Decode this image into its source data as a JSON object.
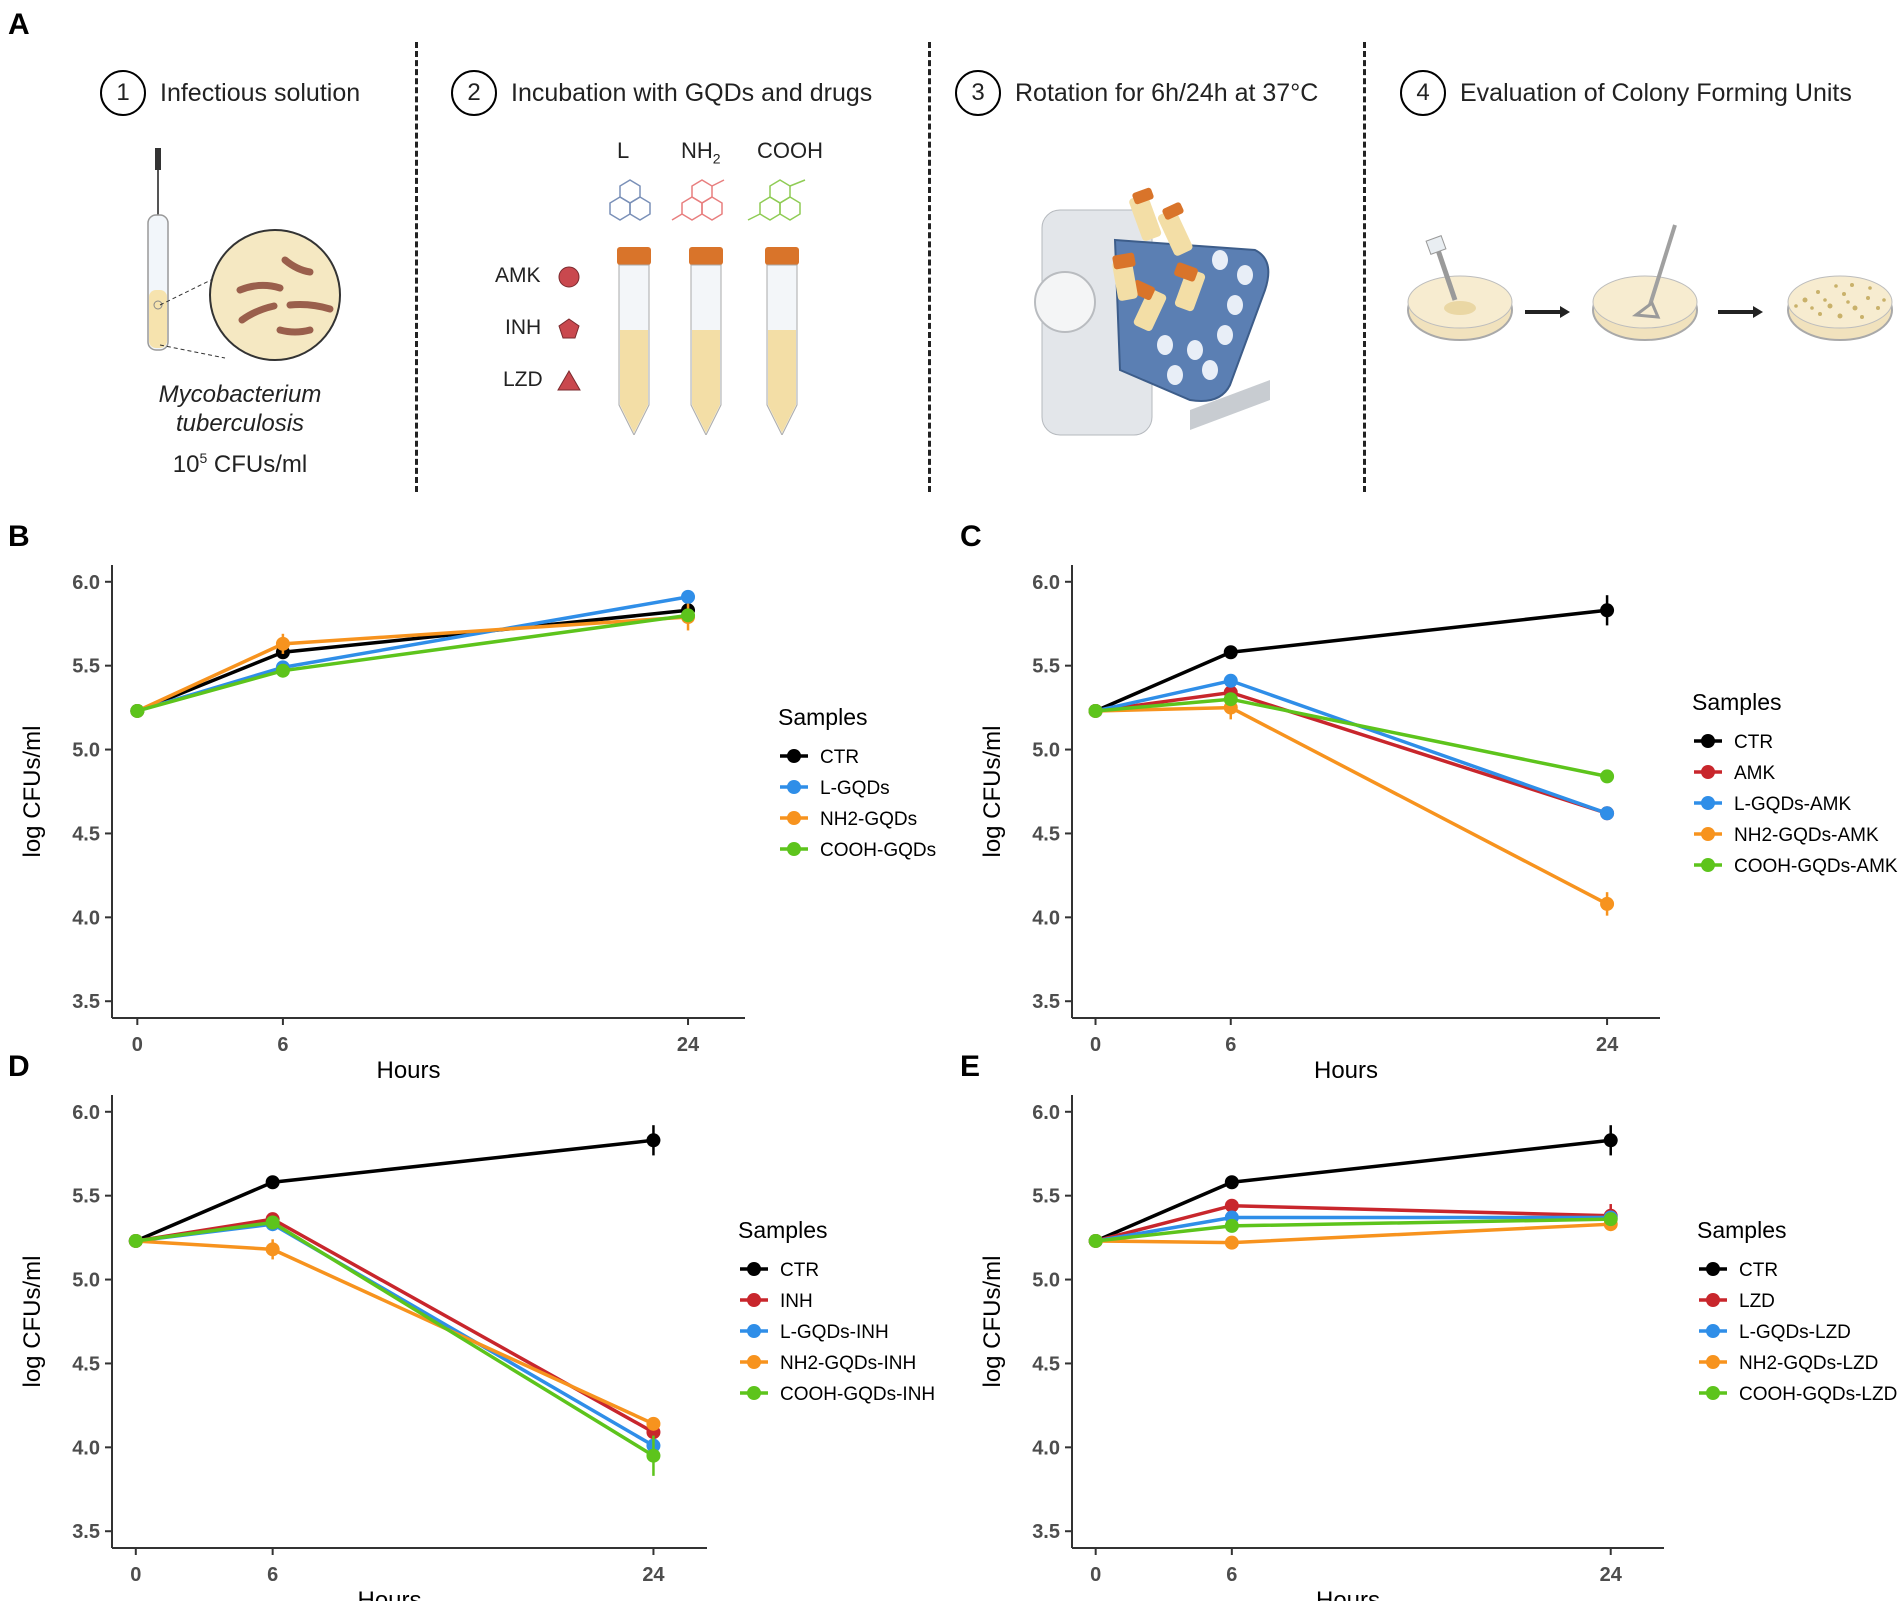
{
  "panel_A": {
    "label": "A",
    "steps": [
      {
        "num": "1",
        "text": "Infectious solution"
      },
      {
        "num": "2",
        "text": "Incubation with GQDs and drugs"
      },
      {
        "num": "3",
        "text": "Rotation for 6h/24h at 37°C"
      },
      {
        "num": "4",
        "text": "Evaluation of Colony Forming Units"
      }
    ],
    "organism_line1": "Mycobacterium",
    "organism_line2": "tuberculosis",
    "conc_base": "10",
    "conc_exp": "5",
    "conc_unit": "CFUs/ml",
    "gqd_types": [
      "L",
      "NH",
      "COOH"
    ],
    "nh2_sub": "2",
    "drugs": [
      "AMK",
      "INH",
      "LZD"
    ],
    "colors": {
      "tube_cap": "#d9742a",
      "plate": "#f4e7c4",
      "rotator_blue": "#5b7fb3",
      "l_gqd": "#7a90b8",
      "nh2_gqd": "#e87f7f",
      "cooh_gqd": "#8fcc55",
      "drug_shape": "#c9484e"
    }
  },
  "chart_data": [
    {
      "panel": "B",
      "type": "line",
      "x": [
        0,
        6,
        24
      ],
      "xlabel": "Hours",
      "ylabel": "log CFUs/ml",
      "ylim": [
        3.4,
        6.1
      ],
      "yticks": [
        "3.5",
        "4.0",
        "4.5",
        "5.0",
        "5.5",
        "6.0"
      ],
      "xticks": [
        "0",
        "6",
        "24"
      ],
      "legend_title": "Samples",
      "series": [
        {
          "name": "CTR",
          "color": "#000000",
          "values": [
            5.23,
            5.58,
            5.83
          ],
          "err": [
            0,
            0.03,
            0.04
          ]
        },
        {
          "name": "L-GQDs",
          "color": "#2f8ee8",
          "values": [
            5.23,
            5.49,
            5.91
          ],
          "err": [
            0,
            0.02,
            0.02
          ]
        },
        {
          "name": "NH2-GQDs",
          "color": "#f7931e",
          "values": [
            5.23,
            5.63,
            5.79
          ],
          "err": [
            0,
            0.06,
            0.08
          ]
        },
        {
          "name": "COOH-GQDs",
          "color": "#5dc41c",
          "values": [
            5.23,
            5.47,
            5.8
          ],
          "err": [
            0,
            0.02,
            0.03
          ]
        }
      ]
    },
    {
      "panel": "C",
      "type": "line",
      "x": [
        0,
        6,
        24
      ],
      "xlabel": "Hours",
      "ylabel": "log CFUs/ml",
      "ylim": [
        3.4,
        6.1
      ],
      "yticks": [
        "3.5",
        "4.0",
        "4.5",
        "5.0",
        "5.5",
        "6.0"
      ],
      "xticks": [
        "0",
        "6",
        "24"
      ],
      "legend_title": "Samples",
      "series": [
        {
          "name": "CTR",
          "color": "#000000",
          "values": [
            5.23,
            5.58,
            5.83
          ],
          "err": [
            0,
            0.02,
            0.09
          ]
        },
        {
          "name": "AMK",
          "color": "#c8262c",
          "values": [
            5.23,
            5.34,
            4.62
          ],
          "err": [
            0,
            0.03,
            0.02
          ]
        },
        {
          "name": "L-GQDs-AMK",
          "color": "#2f8ee8",
          "values": [
            5.23,
            5.41,
            4.62
          ],
          "err": [
            0,
            0.02,
            0.02
          ]
        },
        {
          "name": "NH2-GQDs-AMK",
          "color": "#f7931e",
          "values": [
            5.23,
            5.25,
            4.08
          ],
          "err": [
            0,
            0.07,
            0.07
          ]
        },
        {
          "name": "COOH-GQDs-AMK",
          "color": "#5dc41c",
          "values": [
            5.23,
            5.3,
            4.84
          ],
          "err": [
            0,
            0.03,
            0.02
          ]
        }
      ]
    },
    {
      "panel": "D",
      "type": "line",
      "x": [
        0,
        6,
        24
      ],
      "xlabel": "Hours",
      "ylabel": "log CFUs/ml",
      "ylim": [
        3.4,
        6.1
      ],
      "yticks": [
        "3.5",
        "4.0",
        "4.5",
        "5.0",
        "5.5",
        "6.0"
      ],
      "xticks": [
        "0",
        "6",
        "24"
      ],
      "legend_title": "Samples",
      "series": [
        {
          "name": "CTR",
          "color": "#000000",
          "values": [
            5.23,
            5.58,
            5.83
          ],
          "err": [
            0,
            0.02,
            0.09
          ]
        },
        {
          "name": "INH",
          "color": "#c8262c",
          "values": [
            5.23,
            5.36,
            4.09
          ],
          "err": [
            0,
            0.02,
            0.03
          ]
        },
        {
          "name": "L-GQDs-INH",
          "color": "#2f8ee8",
          "values": [
            5.23,
            5.33,
            4.01
          ],
          "err": [
            0,
            0.03,
            0.02
          ]
        },
        {
          "name": "NH2-GQDs-INH",
          "color": "#f7931e",
          "values": [
            5.23,
            5.18,
            4.14
          ],
          "err": [
            0,
            0.06,
            0.03
          ]
        },
        {
          "name": "COOH-GQDs-INH",
          "color": "#5dc41c",
          "values": [
            5.23,
            5.34,
            3.95
          ],
          "err": [
            0,
            0.02,
            0.12
          ]
        }
      ]
    },
    {
      "panel": "E",
      "type": "line",
      "x": [
        0,
        6,
        24
      ],
      "xlabel": "Hours",
      "ylabel": "log CFUs/ml",
      "ylim": [
        3.4,
        6.1
      ],
      "yticks": [
        "3.5",
        "4.0",
        "4.5",
        "5.0",
        "5.5",
        "6.0"
      ],
      "xticks": [
        "0",
        "6",
        "24"
      ],
      "legend_title": "Samples",
      "series": [
        {
          "name": "CTR",
          "color": "#000000",
          "values": [
            5.23,
            5.58,
            5.83
          ],
          "err": [
            0,
            0.02,
            0.09
          ]
        },
        {
          "name": "LZD",
          "color": "#c8262c",
          "values": [
            5.23,
            5.44,
            5.38
          ],
          "err": [
            0,
            0.02,
            0.07
          ]
        },
        {
          "name": "L-GQDs-LZD",
          "color": "#2f8ee8",
          "values": [
            5.23,
            5.37,
            5.37
          ],
          "err": [
            0,
            0.02,
            0.02
          ]
        },
        {
          "name": "NH2-GQDs-LZD",
          "color": "#f7931e",
          "values": [
            5.23,
            5.22,
            5.33
          ],
          "err": [
            0,
            0.02,
            0.03
          ]
        },
        {
          "name": "COOH-GQDs-LZD",
          "color": "#5dc41c",
          "values": [
            5.23,
            5.32,
            5.36
          ],
          "err": [
            0,
            0.02,
            0.02
          ]
        }
      ]
    }
  ]
}
